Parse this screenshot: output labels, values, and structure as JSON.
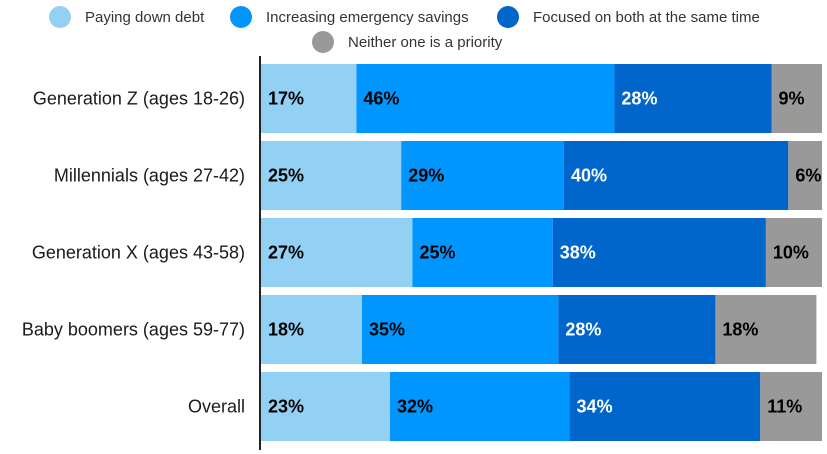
{
  "chart_data": {
    "type": "bar",
    "orientation": "horizontal",
    "stacked": true,
    "categories": [
      "Generation Z (ages 18-26)",
      "Millennials (ages 27-42)",
      "Generation X (ages 43-58)",
      "Baby boomers (ages 59-77)",
      "Overall"
    ],
    "series": [
      {
        "name": "Paying down debt",
        "color": "#92d1f3",
        "label_color": "#000000",
        "values": [
          17,
          25,
          27,
          18,
          23
        ]
      },
      {
        "name": "Increasing emergency savings",
        "color": "#0096ff",
        "label_color": "#000000",
        "values": [
          46,
          29,
          25,
          35,
          32
        ]
      },
      {
        "name": "Focused on both at the same time",
        "color": "#0066cc",
        "label_color": "#ffffff",
        "values": [
          28,
          40,
          38,
          28,
          34
        ]
      },
      {
        "name": "Neither one is a priority",
        "color": "#999999",
        "label_color": "#000000",
        "values": [
          9,
          6,
          10,
          18,
          11
        ]
      }
    ],
    "value_suffix": "%",
    "xlim": [
      0,
      100
    ],
    "title": "",
    "xlabel": "",
    "ylabel": "",
    "legend_position": "top",
    "grid": false
  }
}
